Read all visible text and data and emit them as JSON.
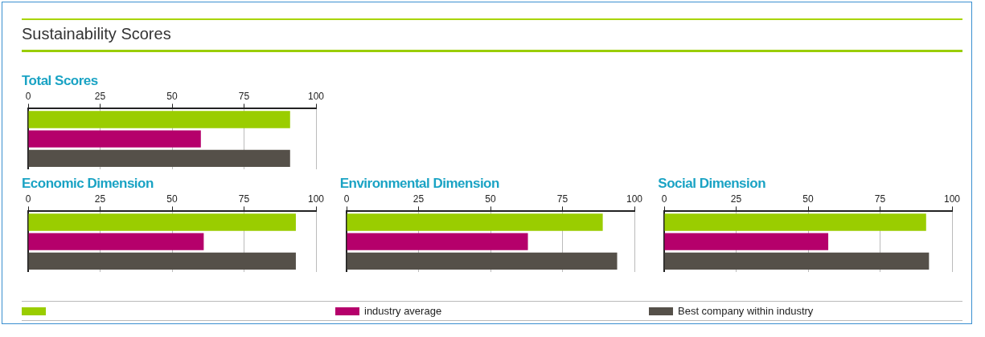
{
  "chart_data": [
    {
      "type": "bar",
      "orientation": "horizontal",
      "title": "Total Scores",
      "annotations": [
        "Sustainability Scores"
      ],
      "categories": [
        null
      ],
      "xlim": [
        0,
        100
      ],
      "xticks": [
        0,
        25,
        50,
        75,
        100
      ],
      "grid": "x",
      "legend": "bottom",
      "series": [
        {
          "color": "#9acd00",
          "values": [
            91
          ]
        },
        {
          "name": "industry average",
          "color": "#b5006b",
          "values": [
            60
          ]
        },
        {
          "name": "Best company within industry",
          "color": "#555049",
          "values": [
            91
          ]
        }
      ]
    },
    {
      "type": "bar",
      "orientation": "horizontal",
      "title": "Economic Dimension",
      "categories": [
        null
      ],
      "xlim": [
        0,
        100
      ],
      "xticks": [
        0,
        25,
        50,
        75,
        100
      ],
      "grid": "x",
      "series": [
        {
          "color": "#9acd00",
          "values": [
            93
          ]
        },
        {
          "color": "#b5006b",
          "values": [
            61
          ]
        },
        {
          "color": "#555049",
          "values": [
            93
          ]
        }
      ]
    },
    {
      "type": "bar",
      "orientation": "horizontal",
      "title": "Environmental Dimension",
      "categories": [
        null
      ],
      "xlim": [
        0,
        100
      ],
      "xticks": [
        0,
        25,
        50,
        75,
        100
      ],
      "grid": "x",
      "series": [
        {
          "color": "#9acd00",
          "values": [
            89
          ]
        },
        {
          "color": "#b5006b",
          "values": [
            63
          ]
        },
        {
          "color": "#555049",
          "values": [
            94
          ]
        }
      ]
    },
    {
      "type": "bar",
      "orientation": "horizontal",
      "title": "Social Dimension",
      "categories": [
        null
      ],
      "xlim": [
        0,
        100
      ],
      "xticks": [
        0,
        25,
        50,
        75,
        100
      ],
      "grid": "x",
      "series": [
        {
          "color": "#9acd00",
          "values": [
            91
          ]
        },
        {
          "color": "#b5006b",
          "values": [
            57
          ]
        },
        {
          "color": "#555049",
          "values": [
            92
          ]
        }
      ]
    }
  ]
}
